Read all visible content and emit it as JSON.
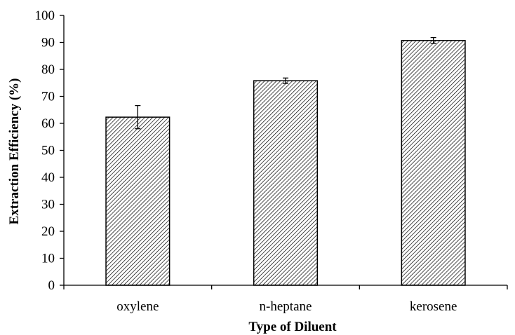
{
  "chart_data": {
    "type": "bar",
    "title": "",
    "xlabel": "Type of Diluent",
    "ylabel": "Extraction Efficiency (%)",
    "categories": [
      "oxylene",
      "n-heptane",
      "kerosene"
    ],
    "values": [
      62.3,
      75.8,
      90.7
    ],
    "errors": [
      4.3,
      1.0,
      1.1
    ],
    "ylim": [
      0,
      100
    ],
    "yticks": [
      "0",
      "10",
      "20",
      "30",
      "40",
      "50",
      "60",
      "70",
      "80",
      "90",
      "100"
    ],
    "grid": false,
    "legend": "none",
    "bar_fill": "diagonal-hatch",
    "colors": {
      "bar_stroke": "#000000",
      "hatch": "#000000",
      "axis": "#000000"
    }
  }
}
